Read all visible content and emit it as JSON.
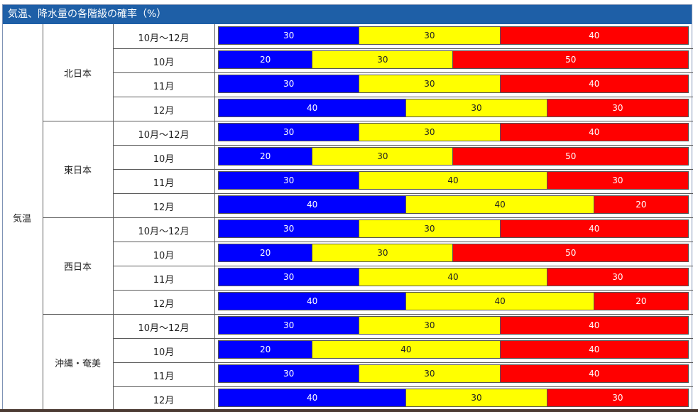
{
  "title": "気温、降水量の各階級の確率（%）",
  "element": "気温",
  "colors": {
    "below": "#0000ff",
    "normal": "#ffff00",
    "above": "#ff0000",
    "below_text": "#ffffff",
    "normal_text": "#222222",
    "above_text": "#ffffff",
    "header": "#1e5fa7"
  },
  "chart_data": {
    "type": "bar",
    "stacked": true,
    "series_colors": [
      "#0000ff",
      "#ffff00",
      "#ff0000"
    ],
    "regions": [
      {
        "name": "北日本",
        "rows": [
          {
            "period": "10月～12月",
            "values": [
              30,
              30,
              40
            ]
          },
          {
            "period": "10月",
            "values": [
              20,
              30,
              50
            ]
          },
          {
            "period": "11月",
            "values": [
              30,
              30,
              40
            ]
          },
          {
            "period": "12月",
            "values": [
              40,
              30,
              30
            ]
          }
        ]
      },
      {
        "name": "東日本",
        "rows": [
          {
            "period": "10月～12月",
            "values": [
              30,
              30,
              40
            ]
          },
          {
            "period": "10月",
            "values": [
              20,
              30,
              50
            ]
          },
          {
            "period": "11月",
            "values": [
              30,
              40,
              30
            ]
          },
          {
            "period": "12月",
            "values": [
              40,
              40,
              20
            ]
          }
        ]
      },
      {
        "name": "西日本",
        "rows": [
          {
            "period": "10月～12月",
            "values": [
              30,
              30,
              40
            ]
          },
          {
            "period": "10月",
            "values": [
              20,
              30,
              50
            ]
          },
          {
            "period": "11月",
            "values": [
              30,
              40,
              30
            ]
          },
          {
            "period": "12月",
            "values": [
              40,
              40,
              20
            ]
          }
        ]
      },
      {
        "name": "沖縄・奄美",
        "rows": [
          {
            "period": "10月～12月",
            "values": [
              30,
              30,
              40
            ]
          },
          {
            "period": "10月",
            "values": [
              20,
              40,
              40
            ]
          },
          {
            "period": "11月",
            "values": [
              30,
              30,
              40
            ]
          },
          {
            "period": "12月",
            "values": [
              40,
              30,
              30
            ]
          }
        ]
      }
    ]
  }
}
